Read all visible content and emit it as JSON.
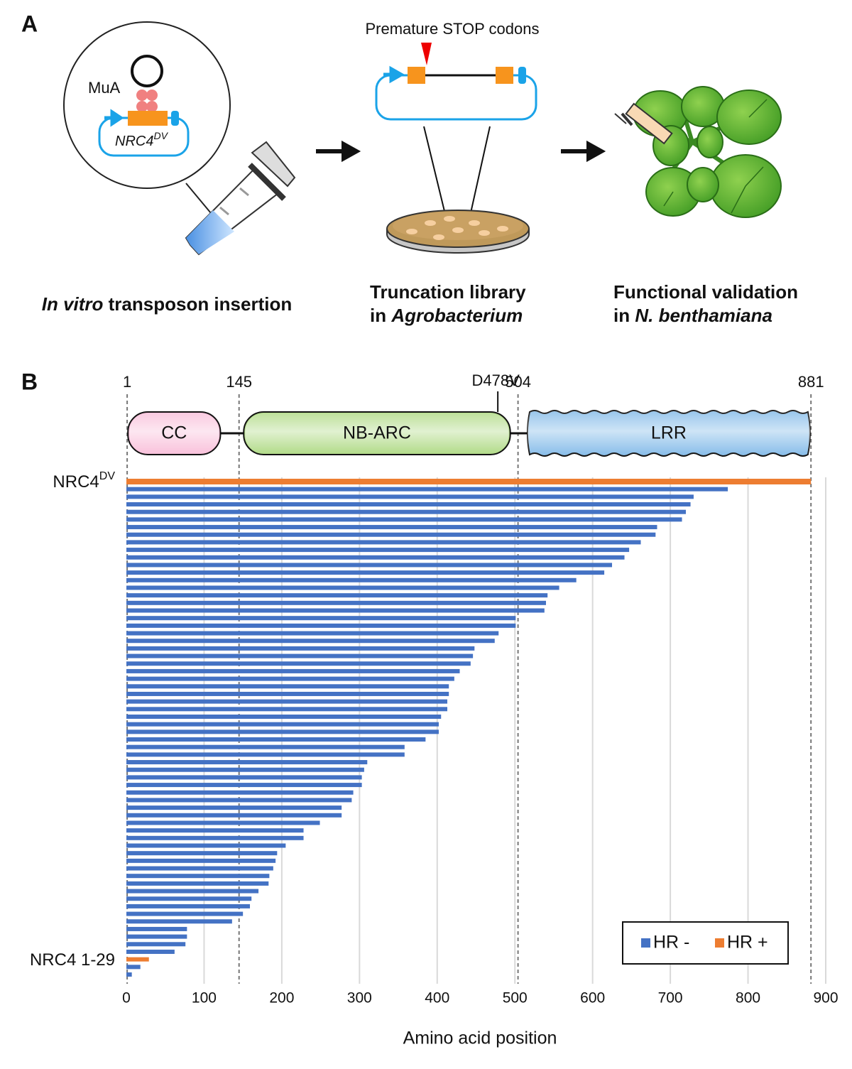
{
  "panel_a": {
    "label": "A",
    "insert_label": "MuA",
    "construct": {
      "text": "NRC4",
      "superscript": "DV"
    },
    "stop_label": "Premature STOP codons",
    "captions": [
      {
        "lines": [
          [
            {
              "text": "In vitro",
              "italic": true
            },
            {
              "text": " transposon insertion"
            }
          ]
        ]
      },
      {
        "lines": [
          [
            {
              "text": "Truncation library"
            }
          ],
          [
            {
              "text": "in "
            },
            {
              "text": "Agrobacterium",
              "italic": true
            }
          ]
        ]
      },
      {
        "lines": [
          [
            {
              "text": "Functional validation"
            }
          ],
          [
            {
              "text": "in "
            },
            {
              "text": "N. benthamiana",
              "italic": true
            }
          ]
        ]
      }
    ]
  },
  "chart_data": {
    "type": "hbar",
    "panel_label": "B",
    "x_label": "Amino acid position",
    "xlim": [
      0,
      900
    ],
    "xticks": [
      0,
      100,
      200,
      300,
      400,
      500,
      600,
      700,
      800,
      900
    ],
    "grid": true,
    "legend": "bottom-right",
    "boundaries": [
      1,
      145,
      504,
      881
    ],
    "mutation": {
      "label": "D478V",
      "position": 478
    },
    "domains": [
      {
        "label": "CC",
        "start": 2,
        "end": 121,
        "color": "#f9c3dc"
      },
      {
        "label": "NB-ARC",
        "start": 151,
        "end": 494,
        "color": "#b4dc8c"
      },
      {
        "label": "LRR",
        "start": 519,
        "end": 877,
        "color": "#86bce9"
      }
    ],
    "categories": [
      {
        "text": "NRC4",
        "superscript": "DV"
      },
      null,
      null,
      null,
      null,
      null,
      null,
      null,
      null,
      null,
      null,
      null,
      null,
      null,
      null,
      null,
      null,
      null,
      null,
      null,
      null,
      null,
      null,
      null,
      null,
      null,
      null,
      null,
      null,
      null,
      null,
      null,
      null,
      null,
      null,
      null,
      null,
      null,
      null,
      null,
      null,
      null,
      null,
      null,
      null,
      null,
      null,
      null,
      null,
      null,
      null,
      null,
      null,
      null,
      null,
      null,
      null,
      null,
      null,
      null,
      null,
      null,
      null,
      "NRC4 1-29",
      null,
      null
    ],
    "series": [
      {
        "name": "HR -",
        "color": "#4472c4",
        "values": [
          null,
          774,
          730,
          726,
          720,
          715,
          683,
          681,
          662,
          647,
          641,
          625,
          615,
          579,
          557,
          542,
          540,
          538,
          501,
          501,
          479,
          474,
          448,
          446,
          443,
          429,
          422,
          415,
          415,
          413,
          413,
          405,
          402,
          402,
          385,
          358,
          358,
          310,
          306,
          303,
          303,
          292,
          290,
          277,
          277,
          249,
          228,
          228,
          205,
          194,
          192,
          189,
          184,
          183,
          170,
          161,
          159,
          150,
          136,
          78,
          78,
          76,
          62,
          null,
          18,
          7
        ]
      },
      {
        "name": "HR +",
        "color": "#ed7d31",
        "values": [
          881,
          null,
          null,
          null,
          null,
          null,
          null,
          null,
          null,
          null,
          null,
          null,
          null,
          null,
          null,
          null,
          null,
          null,
          null,
          null,
          null,
          null,
          null,
          null,
          null,
          null,
          null,
          null,
          null,
          null,
          null,
          null,
          null,
          null,
          null,
          null,
          null,
          null,
          null,
          null,
          null,
          null,
          null,
          null,
          null,
          null,
          null,
          null,
          null,
          null,
          null,
          null,
          null,
          null,
          null,
          null,
          null,
          null,
          null,
          null,
          null,
          null,
          null,
          29,
          null,
          null
        ]
      }
    ]
  }
}
